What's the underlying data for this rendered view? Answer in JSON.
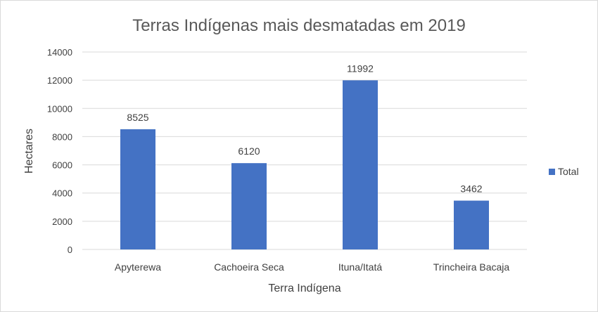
{
  "chart_data": {
    "type": "bar",
    "title": "Terras Indígenas mais desmatadas em 2019",
    "xlabel": "Terra Indígena",
    "ylabel": "Hectares",
    "categories": [
      "Apyterewa",
      "Cachoeira Seca",
      "Ituna/Itatá",
      "Trincheira Bacaja"
    ],
    "series": [
      {
        "name": "Total",
        "values": [
          8525,
          6120,
          11992,
          3462
        ],
        "color": "#4472c4"
      }
    ],
    "ylim": [
      0,
      14000
    ],
    "yticks": [
      0,
      2000,
      4000,
      6000,
      8000,
      10000,
      12000,
      14000
    ],
    "grid": true,
    "legend": "right",
    "data_labels": true
  }
}
